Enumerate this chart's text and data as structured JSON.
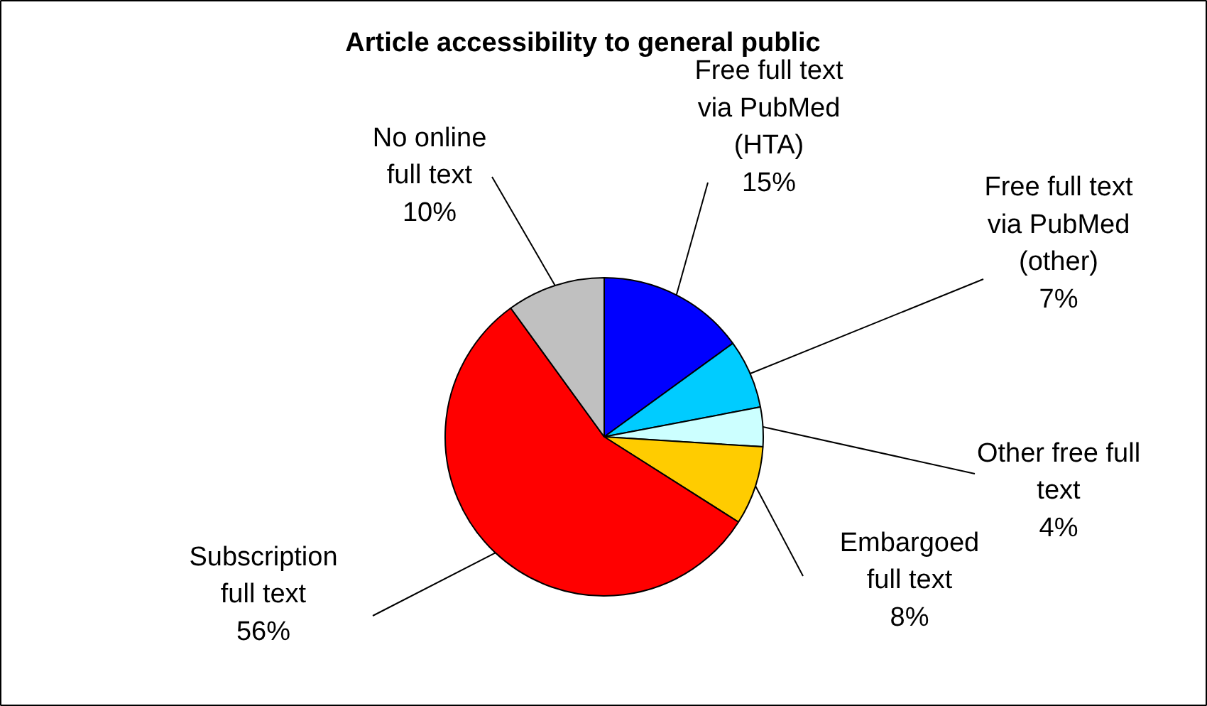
{
  "chart_data": {
    "type": "pie",
    "title": "Article accessibility to general public",
    "categories": [
      "Free full text via PubMed (HTA)",
      "Free full text via PubMed (other)",
      "Other free full text",
      "Embargoed full text",
      "Subscription full text",
      "No online full text"
    ],
    "values": [
      15,
      7,
      4,
      8,
      56,
      10
    ],
    "colors": [
      "#0000ff",
      "#00ccff",
      "#ccffff",
      "#ffcc00",
      "#ff0000",
      "#c0c0c0"
    ],
    "value_labels": [
      "15%",
      "7%",
      "4%",
      "8%",
      "56%",
      "10%"
    ]
  }
}
